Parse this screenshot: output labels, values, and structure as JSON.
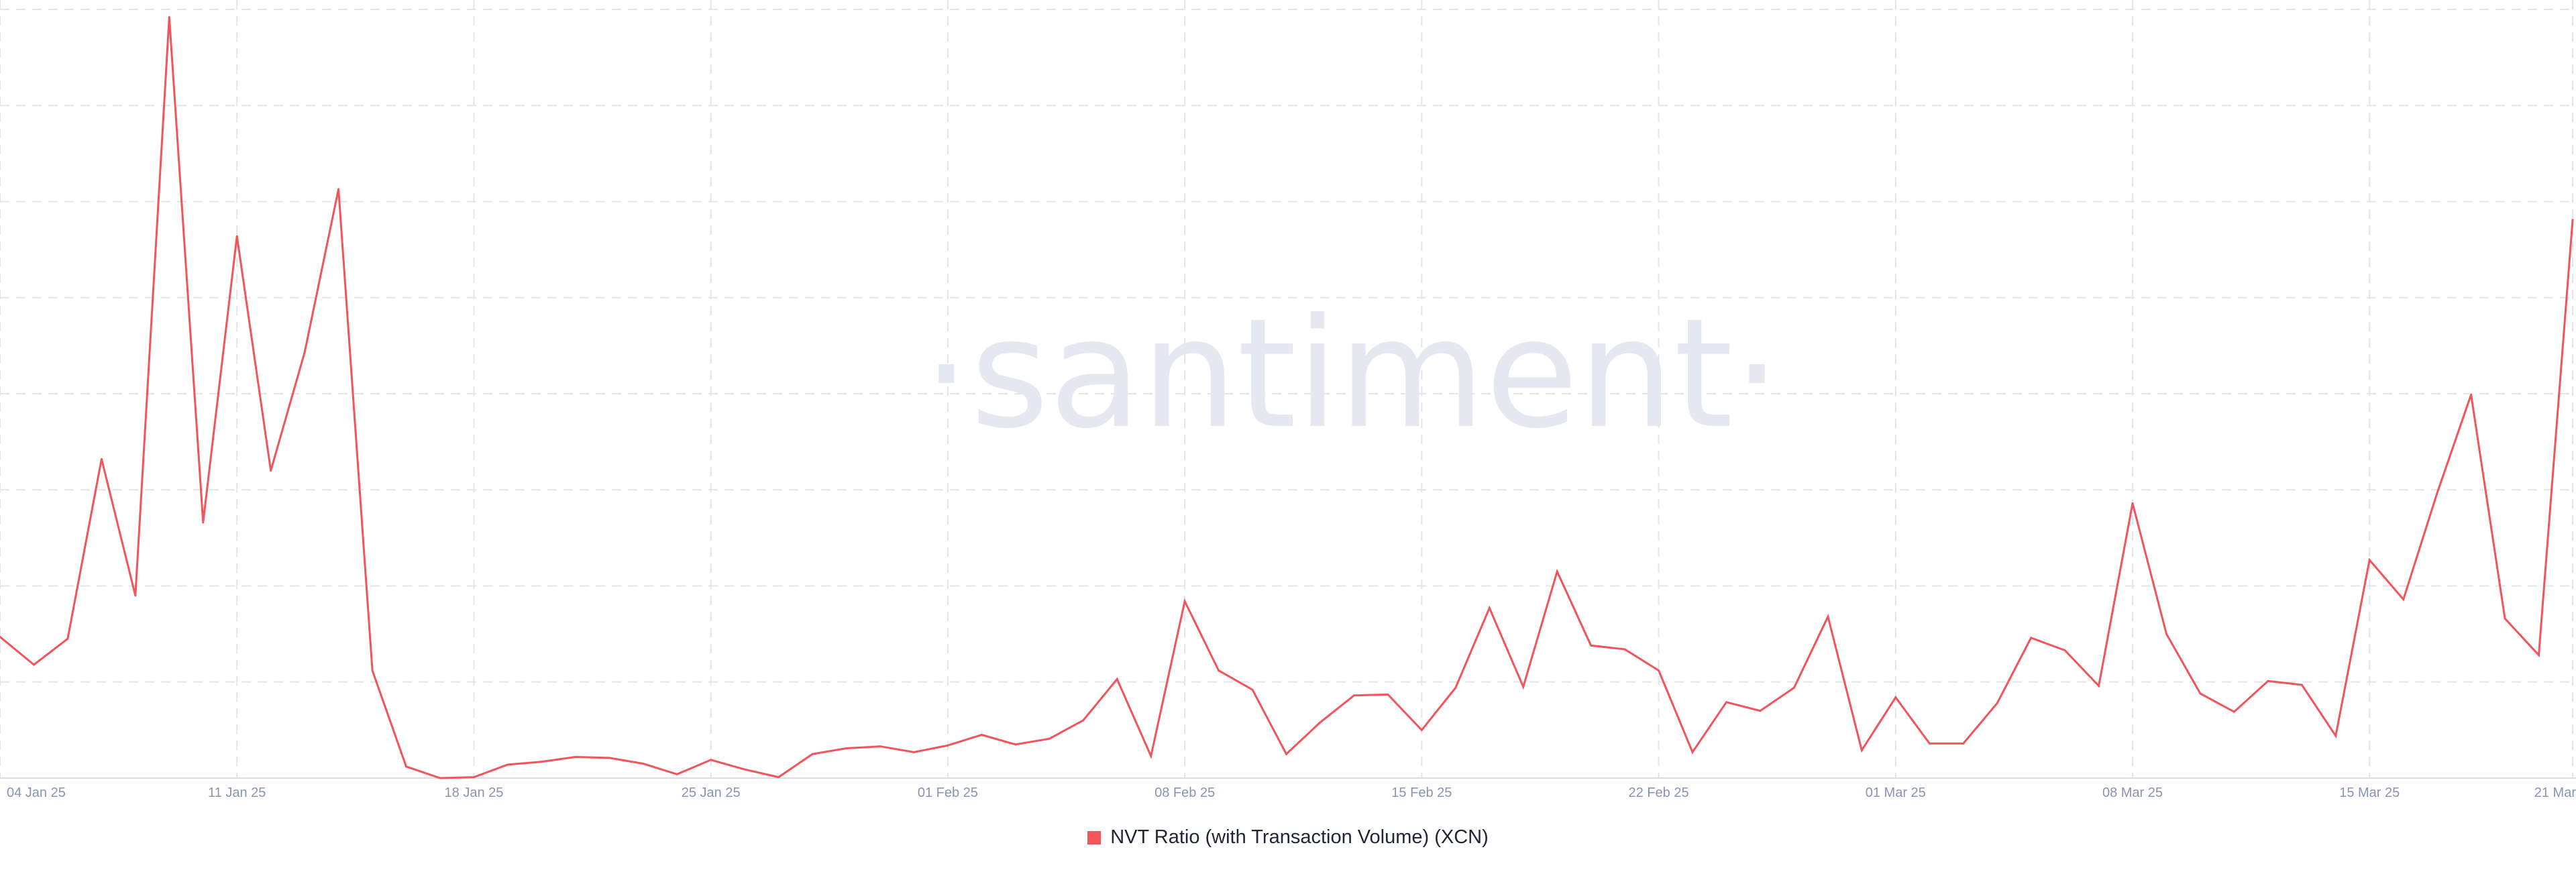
{
  "watermark": "·santiment·",
  "legend": {
    "label": "NVT Ratio (with Transaction Volume) (XCN)"
  },
  "colors": {
    "series": "#f2545b",
    "grid": "#e3e5ea",
    "tick_label": "#8a93b0",
    "watermark": "#e6e8f1"
  },
  "chart_data": {
    "type": "line",
    "grid": true,
    "legend_position": "bottom-center",
    "x_ticks": [
      {
        "label": "04 Jan 25",
        "index": 0
      },
      {
        "label": "11 Jan 25",
        "index": 7
      },
      {
        "label": "18 Jan 25",
        "index": 14
      },
      {
        "label": "25 Jan 25",
        "index": 21
      },
      {
        "label": "01 Feb 25",
        "index": 28
      },
      {
        "label": "08 Feb 25",
        "index": 35
      },
      {
        "label": "15 Feb 25",
        "index": 42
      },
      {
        "label": "22 Feb 25",
        "index": 49
      },
      {
        "label": "01 Mar 25",
        "index": 56
      },
      {
        "label": "08 Mar 25",
        "index": 63
      },
      {
        "label": "15 Mar 25",
        "index": 70
      },
      {
        "label": "21 Mar",
        "index": 76
      }
    ],
    "ylim": [
      0,
      8
    ],
    "series": [
      {
        "color": "#f2545b",
        "values": [
          1.47,
          1.18,
          1.45,
          3.32,
          1.9,
          7.92,
          2.66,
          5.64,
          3.2,
          4.43,
          6.13,
          1.12,
          0.12,
          0.0,
          0.01,
          0.14,
          0.17,
          0.22,
          0.21,
          0.15,
          0.04,
          0.19,
          0.09,
          0.01,
          0.25,
          0.31,
          0.33,
          0.27,
          0.34,
          0.45,
          0.35,
          0.41,
          0.6,
          1.03,
          0.23,
          1.84,
          1.12,
          0.92,
          0.25,
          0.58,
          0.86,
          0.87,
          0.5,
          0.94,
          1.77,
          0.95,
          2.15,
          1.38,
          1.34,
          1.12,
          0.27,
          0.79,
          0.7,
          0.94,
          1.68,
          0.29,
          0.84,
          0.36,
          0.36,
          0.78,
          1.46,
          1.33,
          0.96,
          2.86,
          1.5,
          0.88,
          0.69,
          1.01,
          0.97,
          0.44,
          2.27,
          1.86,
          2.97,
          3.99,
          1.66,
          1.28,
          5.81
        ]
      }
    ]
  }
}
